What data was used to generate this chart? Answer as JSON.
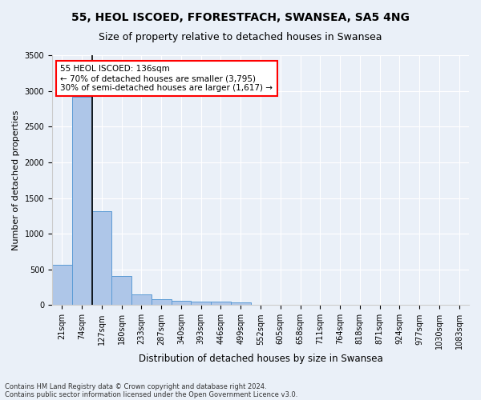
{
  "title1": "55, HEOL ISCOED, FFORESTFACH, SWANSEA, SA5 4NG",
  "title2": "Size of property relative to detached houses in Swansea",
  "xlabel": "Distribution of detached houses by size in Swansea",
  "ylabel": "Number of detached properties",
  "footer1": "Contains HM Land Registry data © Crown copyright and database right 2024.",
  "footer2": "Contains public sector information licensed under the Open Government Licence v3.0.",
  "bar_labels": [
    "21sqm",
    "74sqm",
    "127sqm",
    "180sqm",
    "233sqm",
    "287sqm",
    "340sqm",
    "393sqm",
    "446sqm",
    "499sqm",
    "552sqm",
    "605sqm",
    "658sqm",
    "711sqm",
    "764sqm",
    "818sqm",
    "871sqm",
    "924sqm",
    "977sqm",
    "1030sqm",
    "1083sqm"
  ],
  "bar_values": [
    570,
    2920,
    1320,
    410,
    150,
    80,
    60,
    55,
    45,
    40,
    0,
    0,
    0,
    0,
    0,
    0,
    0,
    0,
    0,
    0,
    0
  ],
  "bar_color": "#aec6e8",
  "bar_edge_color": "#5b9bd5",
  "annotation_line1": "55 HEOL ISCOED: 136sqm",
  "annotation_line2": "← 70% of detached houses are smaller (3,795)",
  "annotation_line3": "30% of semi-detached houses are larger (1,617) →",
  "annotation_box_color": "white",
  "annotation_box_edge_color": "red",
  "vline_color": "black",
  "vline_lw": 1.2,
  "ylim": [
    0,
    3500
  ],
  "yticks": [
    0,
    500,
    1000,
    1500,
    2000,
    2500,
    3000,
    3500
  ],
  "bg_color": "#eaf0f8",
  "plot_bg": "#eaf0f8",
  "grid_color": "white",
  "title1_fontsize": 10,
  "title2_fontsize": 9,
  "xlabel_fontsize": 8.5,
  "ylabel_fontsize": 8,
  "tick_fontsize": 7,
  "annotation_fontsize": 7.5
}
